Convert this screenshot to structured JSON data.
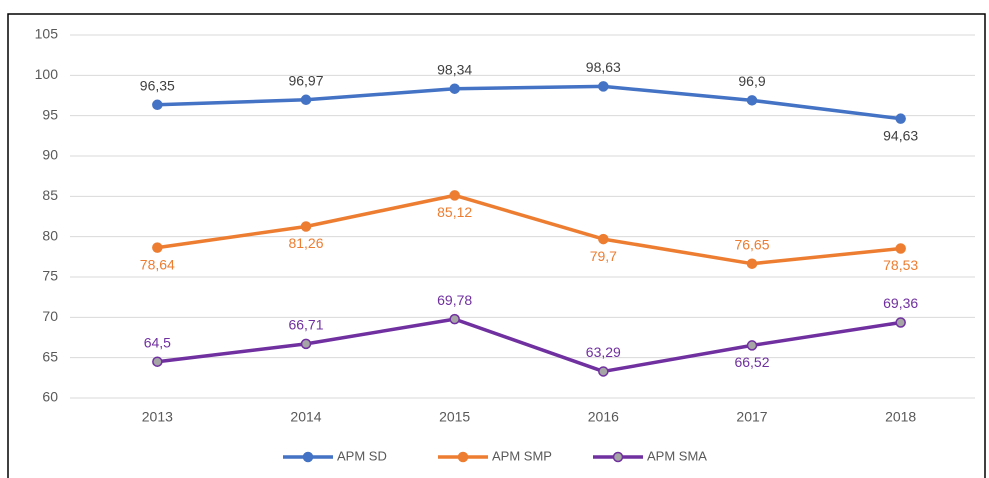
{
  "chart_data": {
    "type": "line",
    "categories": [
      "2013",
      "2014",
      "2015",
      "2016",
      "2017",
      "2018"
    ],
    "series": [
      {
        "name": "APM SD",
        "color": "#4472c4",
        "values": [
          96.35,
          96.97,
          98.34,
          98.63,
          96.9,
          94.63
        ],
        "value_labels": [
          "96,35",
          "96,97",
          "98,34",
          "98,63",
          "96,9",
          "94,63"
        ]
      },
      {
        "name": "APM SMP",
        "color": "#ed7d31",
        "values": [
          78.64,
          81.26,
          85.12,
          79.7,
          76.65,
          78.53
        ],
        "value_labels": [
          "78,64",
          "81,26",
          "85,12",
          "79,7",
          "76,65",
          "78,53"
        ]
      },
      {
        "name": "APM SMA",
        "color": "#7030a0",
        "values": [
          64.5,
          66.71,
          69.78,
          63.29,
          66.52,
          69.36
        ],
        "value_labels": [
          "64,5",
          "66,71",
          "69,78",
          "63,29",
          "66,52",
          "69,36"
        ]
      }
    ],
    "ylim": [
      60,
      105
    ],
    "yticks": [
      60,
      65,
      70,
      75,
      80,
      85,
      90,
      95,
      100,
      105
    ],
    "grid": true,
    "legend": "bottom"
  }
}
